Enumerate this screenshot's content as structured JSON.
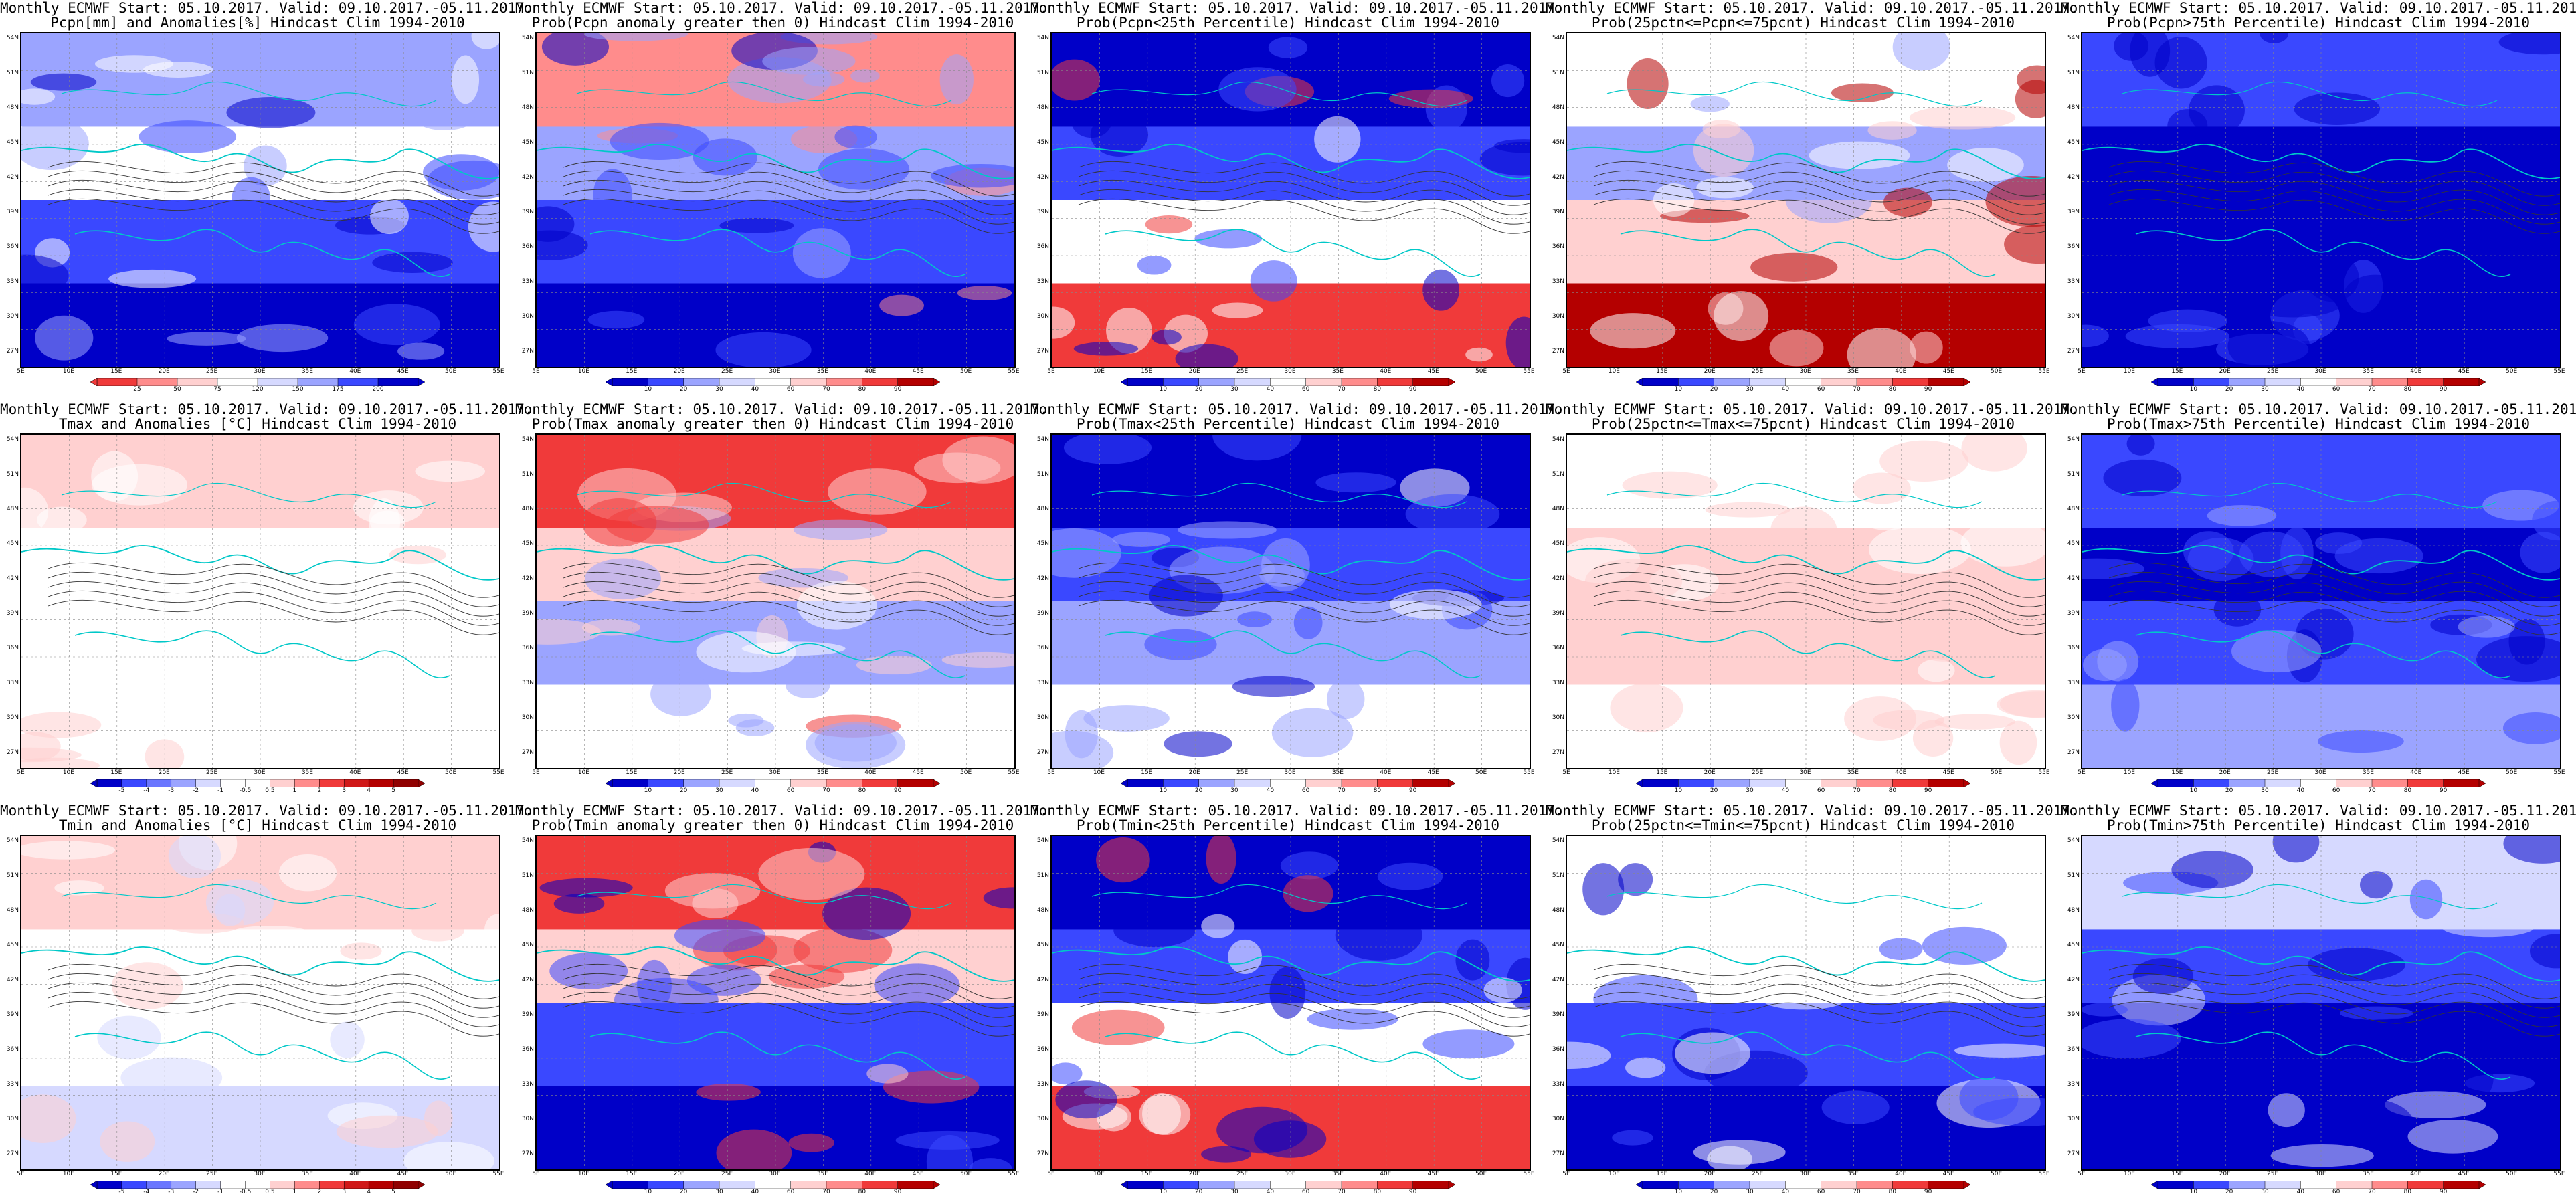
{
  "header_line": "Monthly ECMWF Start: 05.10.2017. Valid: 09.10.2017.-05.11.2017.",
  "lat_ticks": [
    "54N",
    "51N",
    "48N",
    "45N",
    "42N",
    "39N",
    "36N",
    "33N",
    "30N",
    "27N"
  ],
  "lon_ticks": [
    "5E",
    "10E",
    "15E",
    "20E",
    "25E",
    "30E",
    "35E",
    "40E",
    "45E",
    "50E",
    "55E"
  ],
  "scales": {
    "pcpn": [
      "25",
      "50",
      "75",
      "120",
      "150",
      "175",
      "200"
    ],
    "anom": [
      "-5",
      "-4",
      "-3",
      "-2",
      "-1",
      "-0.5",
      "0.5",
      "1",
      "2",
      "3",
      "4",
      "5"
    ],
    "prob": [
      "10",
      "20",
      "30",
      "40",
      "60",
      "70",
      "80",
      "90"
    ]
  },
  "colors": {
    "deep_blue": "#0000c8",
    "blue": "#3a48ff",
    "light_blue": "#9ba4ff",
    "pale_blue": "#d6d9ff",
    "pale_red": "#ffd0d0",
    "light_red": "#ff8c8c",
    "red": "#f03a3a",
    "deep_red": "#b40000",
    "contour_coast": "#00c8c8",
    "contour_black": "#333333"
  },
  "panels": [
    {
      "title": "Pcpn[mm] and Anomalies[%] Hindcast Clim 1994-2010",
      "scale": "pcpn",
      "palette": [
        "#9ba4ff",
        "#ffffff",
        "#3a48ff",
        "#0000c8"
      ]
    },
    {
      "title": "Prob(Pcpn anomaly greater then 0) Hindcast Clim 1994-2010",
      "scale": "prob",
      "palette": [
        "#ff8c8c",
        "#9ba4ff",
        "#3a48ff",
        "#0000c8"
      ]
    },
    {
      "title": "Prob(Pcpn<25th Percentile) Hindcast Clim 1994-2010",
      "scale": "prob",
      "palette": [
        "#0000c8",
        "#3a48ff",
        "#ffffff",
        "#f03a3a"
      ]
    },
    {
      "title": "Prob(25pctn<=Pcpn<=75pcnt) Hindcast Clim 1994-2010",
      "scale": "prob",
      "palette": [
        "#ffffff",
        "#9ba4ff",
        "#ffd0d0",
        "#b40000"
      ]
    },
    {
      "title": "Prob(Pcpn>75th Percentile) Hindcast Clim 1994-2010",
      "scale": "prob",
      "palette": [
        "#3a48ff",
        "#0000c8",
        "#0000c8",
        "#0000c8"
      ]
    },
    {
      "title": "Tmax and Anomalies [°C] Hindcast Clim 1994-2010",
      "scale": "anom",
      "palette": [
        "#ffd0d0",
        "#ffffff",
        "#ffffff",
        "#ffffff"
      ]
    },
    {
      "title": "Prob(Tmax anomaly greater then 0) Hindcast Clim 1994-2010",
      "scale": "prob",
      "palette": [
        "#f03a3a",
        "#ffd0d0",
        "#9ba4ff",
        "#ffffff"
      ]
    },
    {
      "title": "Prob(Tmax<25th Percentile) Hindcast Clim 1994-2010",
      "scale": "prob",
      "palette": [
        "#0000c8",
        "#3a48ff",
        "#9ba4ff",
        "#ffffff"
      ]
    },
    {
      "title": "Prob(25pctn<=Tmax<=75pcnt) Hindcast Clim 1994-2010",
      "scale": "prob",
      "palette": [
        "#ffffff",
        "#ffd0d0",
        "#ffd0d0",
        "#ffffff"
      ]
    },
    {
      "title": "Prob(Tmax>75th Percentile) Hindcast Clim 1994-2010",
      "scale": "prob",
      "palette": [
        "#3a48ff",
        "#0000c8",
        "#3a48ff",
        "#9ba4ff"
      ]
    },
    {
      "title": "Tmin and Anomalies [°C] Hindcast Clim 1994-2010",
      "scale": "anom",
      "palette": [
        "#ffd0d0",
        "#ffffff",
        "#ffffff",
        "#d6d9ff"
      ]
    },
    {
      "title": "Prob(Tmin anomaly greater then 0) Hindcast Clim 1994-2010",
      "scale": "prob",
      "palette": [
        "#f03a3a",
        "#ffd0d0",
        "#3a48ff",
        "#0000c8"
      ]
    },
    {
      "title": "Prob(Tmin<25th Percentile) Hindcast Clim 1994-2010",
      "scale": "prob",
      "palette": [
        "#0000c8",
        "#3a48ff",
        "#ffffff",
        "#f03a3a"
      ]
    },
    {
      "title": "Prob(25pctn<=Tmin<=75pcnt) Hindcast Clim 1994-2010",
      "scale": "prob",
      "palette": [
        "#ffffff",
        "#ffffff",
        "#3a48ff",
        "#0000c8"
      ]
    },
    {
      "title": "Prob(Tmin>75th Percentile) Hindcast Clim 1994-2010",
      "scale": "prob",
      "palette": [
        "#d6d9ff",
        "#3a48ff",
        "#0000c8",
        "#0000c8"
      ]
    }
  ]
}
